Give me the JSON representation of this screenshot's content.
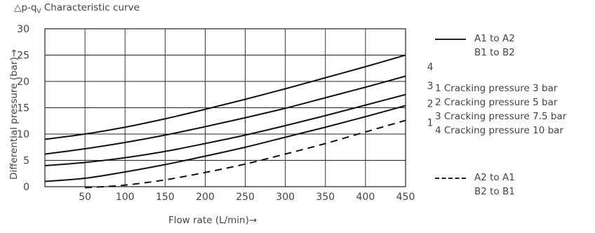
{
  "chart_data": {
    "type": "line",
    "title": "△p-qV Characteristic curve",
    "title_main": "△p-q",
    "title_sub": "V",
    "title_tail": " Characteristic curve",
    "xlabel": "Flow rate (L/min)→",
    "ylabel": "Differential pressure (bar)→",
    "xlim": [
      0,
      450
    ],
    "ylim": [
      0,
      30
    ],
    "xticks": [
      50,
      100,
      150,
      200,
      250,
      300,
      350,
      400,
      450
    ],
    "yticks": [
      0,
      5,
      10,
      15,
      20,
      25,
      30
    ],
    "grid": true,
    "series": [
      {
        "name": "1",
        "style": "solid",
        "x": [
          0,
          50,
          100,
          150,
          200,
          250,
          300,
          350,
          400,
          450
        ],
        "y": [
          1.0,
          1.6,
          2.8,
          4.2,
          5.8,
          7.5,
          9.4,
          11.3,
          13.3,
          15.4
        ]
      },
      {
        "name": "2",
        "style": "solid",
        "x": [
          0,
          50,
          100,
          150,
          200,
          250,
          300,
          350,
          400,
          450
        ],
        "y": [
          4.0,
          4.6,
          5.5,
          6.7,
          8.2,
          9.8,
          11.6,
          13.5,
          15.5,
          17.5
        ]
      },
      {
        "name": "3",
        "style": "solid",
        "x": [
          0,
          50,
          100,
          150,
          200,
          250,
          300,
          350,
          400,
          450
        ],
        "y": [
          6.2,
          7.2,
          8.4,
          9.8,
          11.4,
          13.1,
          14.9,
          16.9,
          18.9,
          21.0
        ]
      },
      {
        "name": "4",
        "style": "solid",
        "x": [
          0,
          50,
          100,
          150,
          200,
          250,
          300,
          350,
          400,
          450
        ],
        "y": [
          9.0,
          10.0,
          11.3,
          12.9,
          14.7,
          16.6,
          18.6,
          20.7,
          22.8,
          25.0
        ]
      },
      {
        "name": "A2 to A1",
        "style": "dashed",
        "x": [
          50,
          100,
          150,
          200,
          250,
          300,
          350,
          400,
          450
        ],
        "y": [
          -0.2,
          0.3,
          1.3,
          2.7,
          4.3,
          6.2,
          8.2,
          10.4,
          12.6
        ]
      }
    ],
    "curve_labels": [
      {
        "text": "1",
        "x": 380,
        "y": 12.2
      },
      {
        "text": "2",
        "x": 380,
        "y": 15.8
      },
      {
        "text": "3",
        "x": 380,
        "y": 19.2
      },
      {
        "text": "4",
        "x": 380,
        "y": 22.8
      }
    ],
    "legend": {
      "position": "right",
      "solid": {
        "line1": "A1 to A2",
        "line2": "B1 to B2"
      },
      "notes": [
        "1 Cracking pressure 3 bar",
        "2 Cracking pressure 5 bar",
        "3 Cracking pressure 7.5 bar",
        "4 Cracking pressure 10 bar"
      ],
      "dashed": {
        "line1": "A2 to A1",
        "line2": "B2 to B1"
      }
    }
  }
}
